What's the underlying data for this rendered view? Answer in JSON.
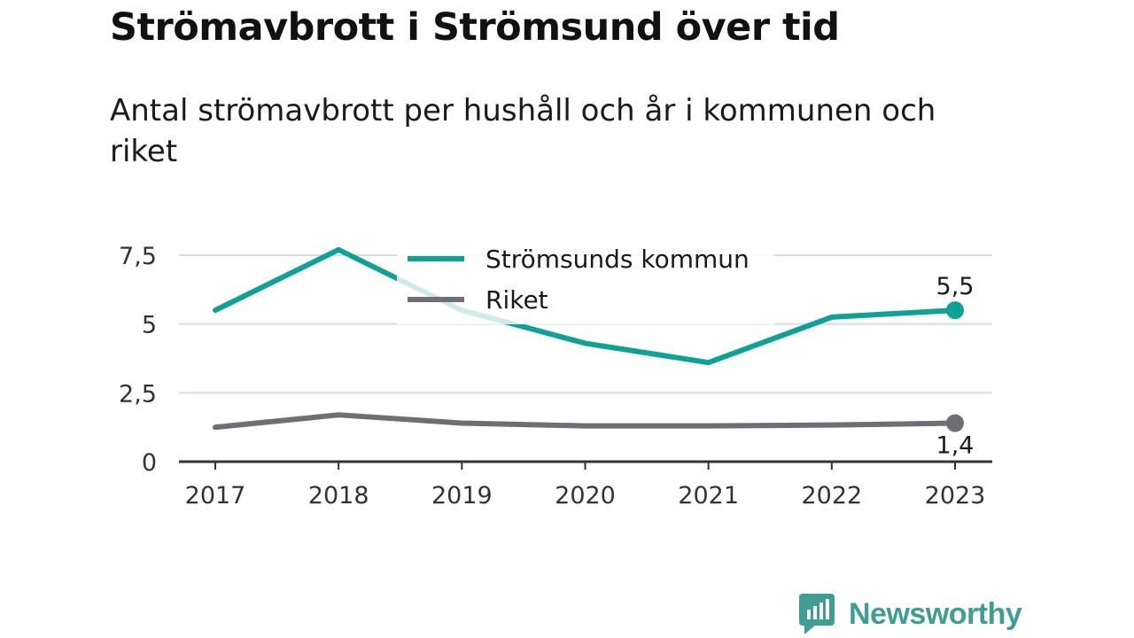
{
  "title": "Strömavbrott i Strömsund över tid",
  "subtitle": "Antal strömavbrott per hushåll och år i kommunen och riket",
  "brand": {
    "name": "Newsworthy",
    "color": "#3f9d96",
    "logo_icon": "bar-chart-speech-bubble-icon"
  },
  "chart_data": {
    "type": "line",
    "x": [
      "2017",
      "2018",
      "2019",
      "2020",
      "2021",
      "2022",
      "2023"
    ],
    "series": [
      {
        "name": "Strömsunds kommun",
        "color": "#0fa195",
        "values": [
          5.5,
          7.7,
          5.5,
          4.3,
          3.6,
          5.25,
          5.5
        ],
        "end_label": "5,5"
      },
      {
        "name": "Riket",
        "color": "#6f6e75",
        "values": [
          1.25,
          1.7,
          1.4,
          1.3,
          1.3,
          1.33,
          1.4
        ],
        "end_label": "1,4"
      }
    ],
    "ylim": [
      0,
      7.5
    ],
    "yticks": [
      {
        "value": 0,
        "label": "0"
      },
      {
        "value": 2.5,
        "label": "2,5"
      },
      {
        "value": 5,
        "label": "5"
      },
      {
        "value": 7.5,
        "label": "7,5"
      }
    ],
    "grid": true,
    "legend_position": "top-center",
    "xlabel": "",
    "ylabel": ""
  }
}
